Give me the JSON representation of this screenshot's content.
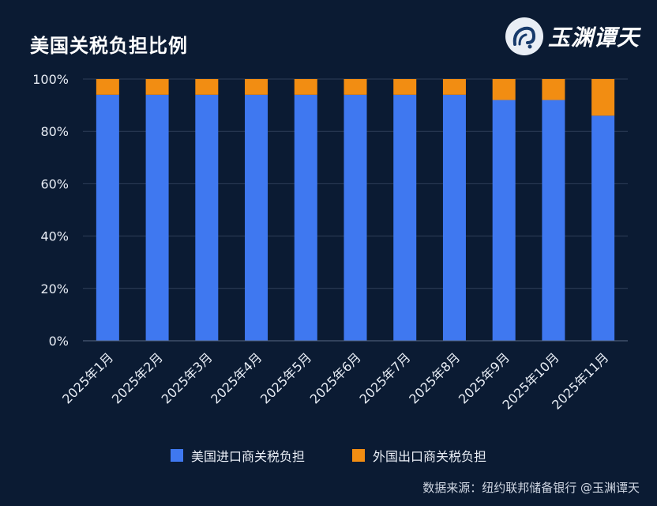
{
  "title": "美国关税负担比例",
  "logo": {
    "text": "玉渊谭天"
  },
  "source": "数据来源：纽约联邦储备银行  @玉渊谭天",
  "colors": {
    "us": "#3f78f0",
    "foreign": "#f28d12",
    "grid": "#2f3f5a",
    "background": "#0b1b33"
  },
  "chart_data": {
    "type": "bar",
    "stacked": true,
    "title": "美国关税负担比例",
    "categories": [
      "2025年1月",
      "2025年2月",
      "2025年3月",
      "2025年4月",
      "2025年5月",
      "2025年6月",
      "2025年7月",
      "2025年8月",
      "2025年9月",
      "2025年10月",
      "2025年11月"
    ],
    "series": [
      {
        "name": "美国进口商关税负担",
        "values": [
          94,
          94,
          94,
          94,
          94,
          94,
          94,
          94,
          92,
          92,
          86
        ],
        "color": "#3f78f0"
      },
      {
        "name": "外国出口商关税负担",
        "values": [
          6,
          6,
          6,
          6,
          6,
          6,
          6,
          6,
          8,
          8,
          14
        ],
        "color": "#f28d12"
      }
    ],
    "yticks": [
      "0%",
      "20%",
      "40%",
      "60%",
      "80%",
      "100%"
    ],
    "ylim": [
      0,
      100
    ],
    "grid": true,
    "legend_position": "bottom"
  }
}
